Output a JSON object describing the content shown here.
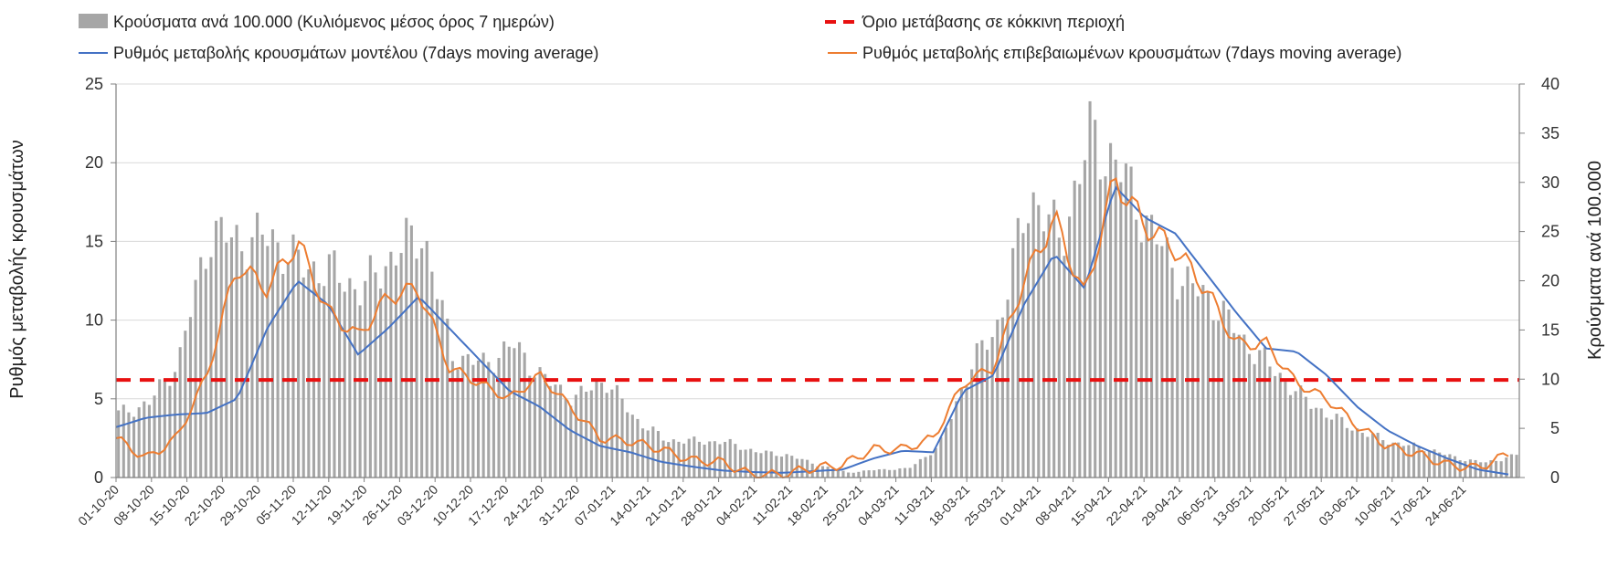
{
  "colors": {
    "bars": "#a6a6a6",
    "model_line": "#4472c4",
    "confirmed_line": "#ed7d31",
    "threshold": "#e81010",
    "grid": "#d9d9d9",
    "axis": "#808080"
  },
  "chart_data": {
    "type": "bar+line",
    "title": "",
    "ylabel_left": "Ρυθμός μεταβολής κρουσμάτων",
    "ylabel_right": "Κρούσματα ανά 100.000",
    "ylim_left": [
      0,
      25
    ],
    "ylim_right": [
      0,
      40
    ],
    "yticks_left": [
      "0",
      "5",
      "10",
      "15",
      "20",
      "25"
    ],
    "yticks_right": [
      "0",
      "5",
      "10",
      "15",
      "20",
      "25",
      "30",
      "35",
      "40"
    ],
    "legend": {
      "bars": "Κρούσματα ανά 100.000 (Κυλιόμενος μέσος όρος 7 ημερών)",
      "threshold": "Όριο μετάβασης σε κόκκινη περιοχή",
      "model": "Ρυθμός μεταβολής κρουσμάτων μοντέλου (7days moving average)",
      "confirmed": "Ρυθμός μεταβολής επιβεβαιωμένων κρουσμάτων (7days moving average)"
    },
    "x_ticks": [
      "01-10-20",
      "08-10-20",
      "15-10-20",
      "22-10-20",
      "29-10-20",
      "05-11-20",
      "12-11-20",
      "19-11-20",
      "26-11-20",
      "03-12-20",
      "10-12-20",
      "17-12-20",
      "24-12-20",
      "31-12-20",
      "07-01-21",
      "14-01-21",
      "21-01-21",
      "28-01-21",
      "04-02-21",
      "11-02-21",
      "18-02-21",
      "25-02-21",
      "04-03-21",
      "11-03-21",
      "18-03-21",
      "25-03-21",
      "01-04-21",
      "08-04-21",
      "15-04-21",
      "22-04-21",
      "29-04-21",
      "06-05-21",
      "13-05-21",
      "20-05-21",
      "27-05-21",
      "03-06-21",
      "10-06-21",
      "17-06-21",
      "24-06-21"
    ],
    "threshold_value_left": 6.2,
    "bar_weekly_right_axis": [
      6.5,
      7.5,
      12,
      25,
      24,
      24.5,
      21.5,
      21,
      19,
      22.5,
      25,
      12.5,
      11.5,
      13.5,
      10,
      8,
      10,
      6,
      3.8,
      3.7,
      3.6,
      2.6,
      2.3,
      1.3,
      0.5,
      0.8,
      0.9,
      3.2,
      11,
      16,
      29,
      24,
      35,
      31,
      25,
      20,
      18,
      14,
      11,
      8,
      6,
      4.5,
      3.5,
      3,
      2,
      1.5,
      2.3
    ],
    "model_weekly_left_axis": [
      3.2,
      3.8,
      4.0,
      4.1,
      5.0,
      9.5,
      12.5,
      11.0,
      7.8,
      9.5,
      11.5,
      9.5,
      7.5,
      5.5,
      4.5,
      3.0,
      2.0,
      1.6,
      1.0,
      0.7,
      0.45,
      0.35,
      0.3,
      0.4,
      0.5,
      1.2,
      1.7,
      1.6,
      5.5,
      6.5,
      11.0,
      14.2,
      12.0,
      18.5,
      16.5,
      15.5,
      13.0,
      10.5,
      8.2,
      8.0,
      6.5,
      4.5,
      3.0,
      2.0,
      1.2,
      0.5,
      0.2
    ],
    "confirmed_weekly_left_axis": [
      2.5,
      1.2,
      2.5,
      6.5,
      13.5,
      12.0,
      15.0,
      10.5,
      9.0,
      11.5,
      12.0,
      7.0,
      6.0,
      5.0,
      6.5,
      4.5,
      2.5,
      2.3,
      1.8,
      1.1,
      1.0,
      0.15,
      0.2,
      0.6,
      0.8,
      1.8,
      1.8,
      2.5,
      6.0,
      7.0,
      12.5,
      16.5,
      11.5,
      19.0,
      16.0,
      14.5,
      12.0,
      8.5,
      8.5,
      6.0,
      5.0,
      3.3,
      2.0,
      1.5,
      0.8,
      0.6,
      1.5
    ]
  }
}
